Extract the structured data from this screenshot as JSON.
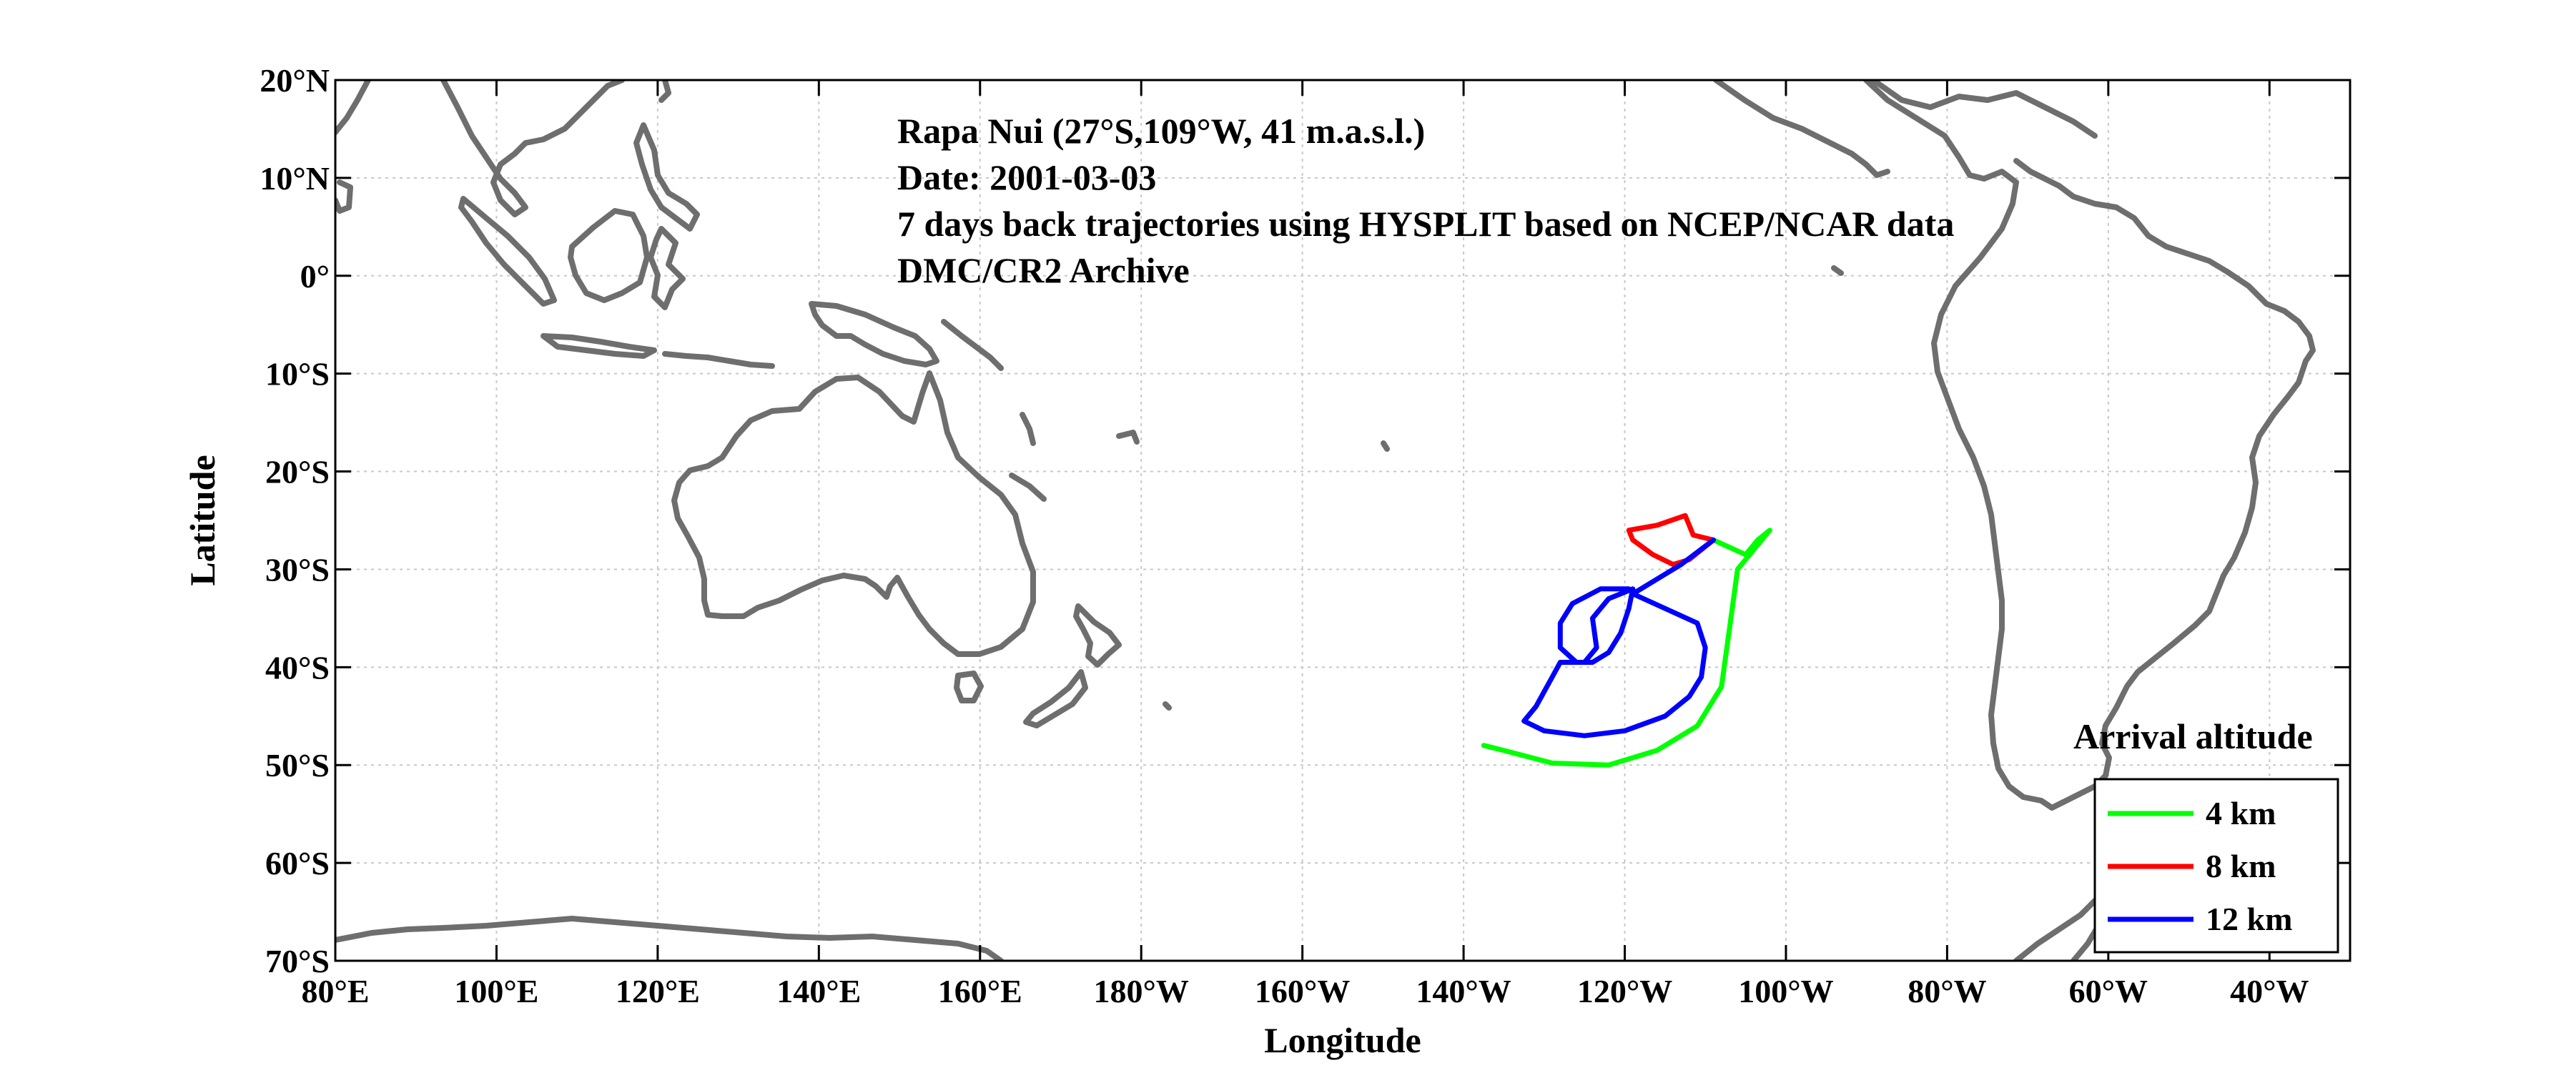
{
  "map": {
    "annotations": [
      "Rapa Nui (27°S,109°W, 41 m.a.s.l.)",
      "Date: 2001-03-03",
      "7 days back trajectories using HYSPLIT based on NCEP/NCAR data",
      "DMC/CR2 Archive"
    ],
    "xlabel": "Longitude",
    "ylabel": "Latitude",
    "legend_title": "Arrival altitude"
  },
  "chart_data": {
    "type": "line",
    "xlim": [
      80,
      330
    ],
    "ylim": [
      -70,
      20
    ],
    "x_units": "degrees longitude east (0-360)",
    "y_units": "degrees latitude",
    "grid": true,
    "legend_position": "bottom-right",
    "x_ticks": [
      80,
      100,
      120,
      140,
      160,
      180,
      200,
      220,
      240,
      260,
      280,
      300,
      320
    ],
    "x_tick_labels": [
      "80°E",
      "100°E",
      "120°E",
      "140°E",
      "160°E",
      "180°W",
      "160°W",
      "140°W",
      "120°W",
      "100°W",
      "80°W",
      "60°W",
      "40°W"
    ],
    "y_ticks": [
      20,
      10,
      0,
      -10,
      -20,
      -30,
      -40,
      -50,
      -60,
      -70
    ],
    "y_tick_labels": [
      "20°N",
      "10°N",
      "0°",
      "10°S",
      "20°S",
      "30°S",
      "40°S",
      "50°S",
      "60°S",
      "70°S"
    ],
    "series": [
      {
        "name": "4 km",
        "color": "#00ff00",
        "points": [
          [
            251,
            -27
          ],
          [
            255,
            -28.5
          ],
          [
            256.5,
            -27
          ],
          [
            258,
            -26
          ],
          [
            254,
            -30
          ],
          [
            253,
            -36
          ],
          [
            252,
            -42
          ],
          [
            249,
            -46
          ],
          [
            244,
            -48.5
          ],
          [
            238,
            -50
          ],
          [
            231,
            -49.8
          ],
          [
            225,
            -48.5
          ],
          [
            222.5,
            -48
          ]
        ]
      },
      {
        "name": "8 km",
        "color": "#ff0000",
        "points": [
          [
            251,
            -27
          ],
          [
            248,
            -29
          ],
          [
            246,
            -29.5
          ],
          [
            243.5,
            -28.5
          ],
          [
            241,
            -27
          ],
          [
            240.5,
            -26
          ],
          [
            244,
            -25.5
          ],
          [
            247.5,
            -24.5
          ],
          [
            248.5,
            -26.5
          ],
          [
            251,
            -27
          ]
        ]
      },
      {
        "name": "12 km",
        "color": "#0000ff",
        "points": [
          [
            251,
            -27
          ],
          [
            247,
            -29.5
          ],
          [
            243,
            -31.5
          ],
          [
            241,
            -32.5
          ],
          [
            249,
            -35.5
          ],
          [
            250,
            -38
          ],
          [
            249.5,
            -41
          ],
          [
            248,
            -43
          ],
          [
            245,
            -45
          ],
          [
            240,
            -46.5
          ],
          [
            235,
            -47
          ],
          [
            230,
            -46.5
          ],
          [
            227.5,
            -45.5
          ],
          [
            229,
            -44
          ],
          [
            231,
            -41
          ],
          [
            232,
            -39.5
          ],
          [
            235,
            -39.5
          ],
          [
            236.5,
            -38
          ],
          [
            236,
            -35
          ],
          [
            238,
            -33
          ],
          [
            241,
            -32
          ],
          [
            240.5,
            -34
          ],
          [
            239.5,
            -36.5
          ],
          [
            238,
            -38.5
          ],
          [
            236,
            -39.5
          ],
          [
            234,
            -39.5
          ],
          [
            232,
            -38
          ],
          [
            232,
            -35.5
          ],
          [
            233.5,
            -33.5
          ],
          [
            237,
            -32
          ],
          [
            240.5,
            -32
          ]
        ]
      }
    ]
  }
}
